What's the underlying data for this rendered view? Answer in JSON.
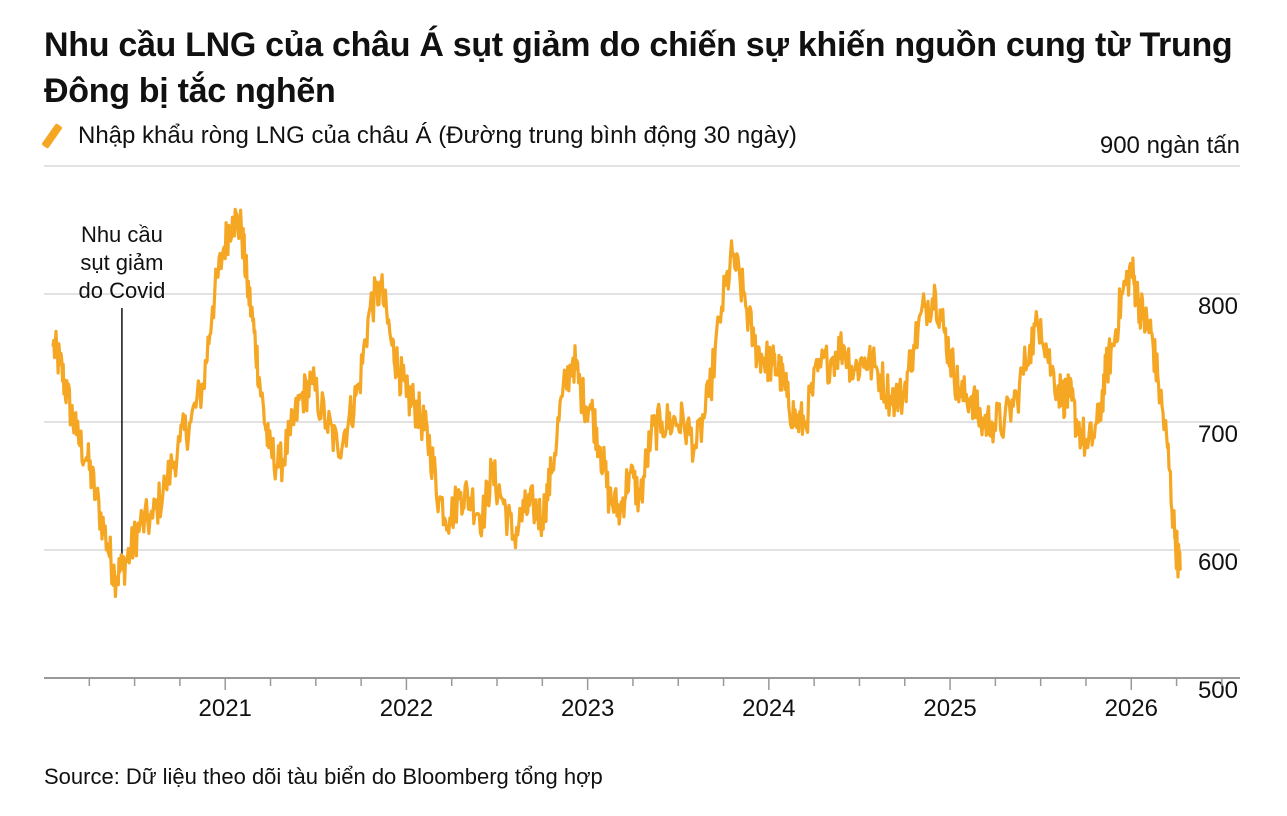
{
  "title": "Nhu cầu LNG của châu Á sụt giảm do chiến sự khiến nguồn cung từ Trung Đông bị tắc nghẽn",
  "legend_label": "Nhập khẩu ròng LNG của châu Á (Đường trung bình động 30 ngày)",
  "unit_label": "900 ngàn tấn",
  "source": "Source: Dữ liệu theo dõi tàu biển do Bloomberg tổng hợp",
  "colors": {
    "line": "#f5a623",
    "grid": "#d9d9d9",
    "axis": "#999999"
  },
  "chart_data": {
    "type": "line",
    "title": "Nhu cầu LNG của châu Á sụt giảm do chiến sự khiến nguồn cung từ Trung Đông bị tắc nghẽn",
    "ylabel": "ngàn tấn",
    "xlabel": "",
    "ylim": [
      500,
      900
    ],
    "xlim": [
      2020.0,
      2026.6
    ],
    "yticks": [
      500,
      600,
      700,
      800,
      900
    ],
    "ytick_labels": [
      "500",
      "600",
      "700",
      "800",
      "900 ngàn tấn"
    ],
    "xticks": [
      2021,
      2022,
      2023,
      2024,
      2025,
      2026
    ],
    "xtick_labels": [
      "2021",
      "2022",
      "2023",
      "2024",
      "2025",
      "2026"
    ],
    "series": [
      {
        "name": "Nhập khẩu ròng LNG của châu Á (Đường trung bình động 30 ngày)",
        "x": [
          2020.05,
          2020.09,
          2020.13,
          2020.18,
          2020.24,
          2020.29,
          2020.35,
          2020.39,
          2020.43,
          2020.48,
          2020.53,
          2020.6,
          2020.67,
          2020.75,
          2020.81,
          2020.88,
          2020.93,
          2020.99,
          2021.04,
          2021.09,
          2021.12,
          2021.16,
          2021.2,
          2021.24,
          2021.3,
          2021.36,
          2021.42,
          2021.48,
          2021.56,
          2021.62,
          2021.68,
          2021.74,
          2021.8,
          2021.86,
          2021.92,
          2021.96,
          2022.0,
          2022.04,
          2022.09,
          2022.13,
          2022.18,
          2022.24,
          2022.3,
          2022.36,
          2022.42,
          2022.47,
          2022.53,
          2022.59,
          2022.65,
          2022.7,
          2022.75,
          2022.8,
          2022.86,
          2022.92,
          2022.97,
          2023.02,
          2023.07,
          2023.12,
          2023.18,
          2023.23,
          2023.29,
          2023.35,
          2023.41,
          2023.47,
          2023.53,
          2023.6,
          2023.67,
          2023.74,
          2023.8,
          2023.86,
          2023.92,
          2023.97,
          2024.02,
          2024.06,
          2024.1,
          2024.15,
          2024.2,
          2024.27,
          2024.35,
          2024.41,
          2024.47,
          2024.53,
          2024.6,
          2024.67,
          2024.74,
          2024.8,
          2024.86,
          2024.92,
          2024.97,
          2025.02,
          2025.06,
          2025.12,
          2025.17,
          2025.23,
          2025.3,
          2025.37,
          2025.44,
          2025.5,
          2025.56,
          2025.62,
          2025.66,
          2025.7,
          2025.76,
          2025.82,
          2025.86,
          2025.9,
          2025.95,
          2026.0,
          2026.03,
          2026.07,
          2026.11,
          2026.15,
          2026.2,
          2026.24,
          2026.27
        ],
        "values": [
          760,
          745,
          720,
          690,
          670,
          640,
          605,
          580,
          585,
          600,
          620,
          625,
          650,
          685,
          700,
          730,
          790,
          835,
          860,
          850,
          810,
          770,
          720,
          680,
          665,
          690,
          720,
          730,
          700,
          680,
          700,
          730,
          790,
          805,
          760,
          740,
          720,
          715,
          700,
          680,
          640,
          625,
          645,
          640,
          625,
          660,
          640,
          610,
          630,
          635,
          625,
          660,
          720,
          750,
          720,
          710,
          680,
          640,
          630,
          660,
          640,
          690,
          700,
          700,
          700,
          680,
          720,
          790,
          830,
          800,
          760,
          750,
          745,
          740,
          720,
          700,
          700,
          740,
          750,
          760,
          740,
          750,
          740,
          720,
          720,
          760,
          790,
          800,
          770,
          740,
          720,
          720,
          700,
          700,
          700,
          720,
          760,
          780,
          740,
          720,
          720,
          700,
          680,
          700,
          740,
          760,
          800,
          820,
          800,
          780,
          770,
          730,
          680,
          610,
          585
        ]
      }
    ],
    "annotations": [
      {
        "x": 2020.43,
        "y": 585,
        "text": [
          "Nhu cầu",
          "sụt giảm",
          "do Covid"
        ]
      }
    ]
  }
}
